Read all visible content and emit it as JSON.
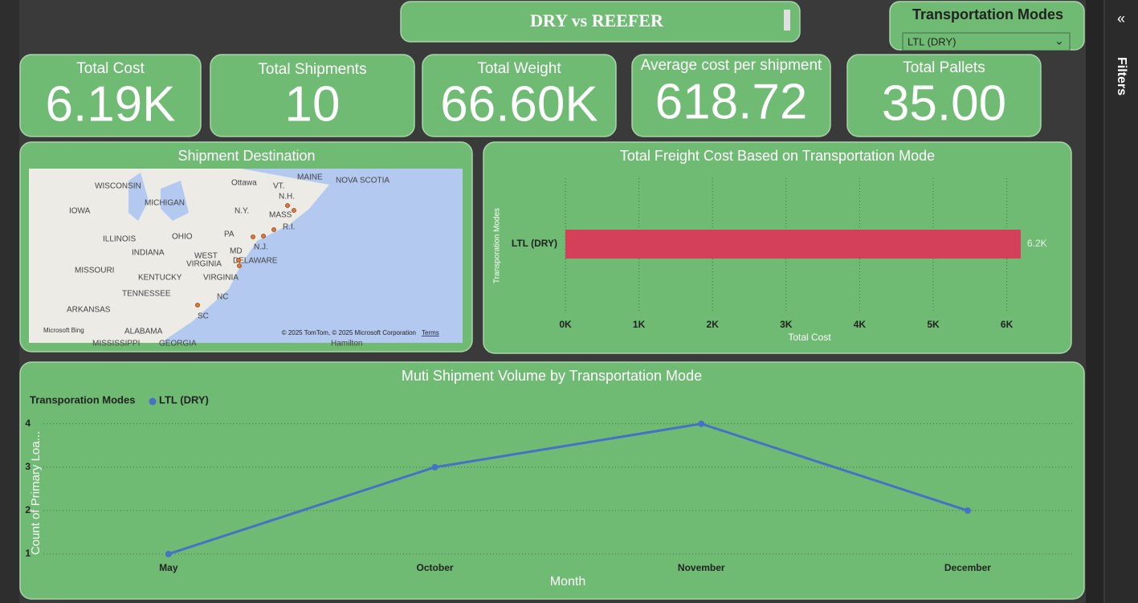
{
  "title": "DRY vs REEFER",
  "slicer": {
    "title": "Transportation Modes",
    "selected": "LTL (DRY)"
  },
  "filters_pane": {
    "label": "Filters"
  },
  "kpis": [
    {
      "label": "Total Cost",
      "value": "6.19K"
    },
    {
      "label": "Total Shipments",
      "value": "10"
    },
    {
      "label": "Total Weight",
      "value": "66.60K"
    },
    {
      "label": "Average cost per shipment",
      "value": "618.72"
    },
    {
      "label": "Total Pallets",
      "value": "35.00"
    }
  ],
  "map": {
    "title": "Shipment Destination",
    "labels": [
      "WISCONSIN",
      "MICHIGAN",
      "Ottawa",
      "MAINE",
      "NOVA SCOTIA",
      "VT.",
      "N.H.",
      "IOWA",
      "N.Y.",
      "MASS",
      "R.I.",
      "ILLINOIS",
      "OHIO",
      "PA",
      "INDIANA",
      "N.J.",
      "MD",
      "WEST",
      "VIRGINIA",
      "DELAWARE",
      "MISSOURI",
      "KENTUCKY",
      "VIRGINIA",
      "TENNESSEE",
      "NC",
      "ARKANSAS",
      "SC",
      "ALABAMA",
      "MISSISSIPPI",
      "GEORGIA",
      "Hamilton"
    ],
    "attribution": "© 2025 TomTom, © 2025 Microsoft Corporation",
    "terms": "Terms",
    "provider": "Microsoft Bing"
  },
  "chart_data": [
    {
      "type": "bar",
      "orientation": "horizontal",
      "title": "Total Freight Cost Based on Transportation Mode",
      "y_label": "Transporation Modes",
      "x_label": "Total Cost",
      "categories": [
        "LTL (DRY)"
      ],
      "values": [
        6190
      ],
      "value_labels": [
        "6.2K"
      ],
      "color": "#d4405a",
      "xlim": [
        0,
        6500
      ],
      "xticks": [
        {
          "value": 0,
          "label": "0K"
        },
        {
          "value": 1000,
          "label": "1K"
        },
        {
          "value": 2000,
          "label": "2K"
        },
        {
          "value": 3000,
          "label": "3K"
        },
        {
          "value": 4000,
          "label": "4K"
        },
        {
          "value": 5000,
          "label": "5K"
        },
        {
          "value": 6000,
          "label": "6K"
        }
      ],
      "grid": true
    },
    {
      "type": "line",
      "title": "Muti Shipment Volume by Transportation Mode",
      "legend_title": "Transporation Modes",
      "y_label": "Count of Primary Loa...",
      "x_label": "Month",
      "categories": [
        "May",
        "October",
        "November",
        "December"
      ],
      "series": [
        {
          "name": "LTL (DRY)",
          "color": "#4472c4",
          "values": [
            1,
            3,
            4,
            2
          ]
        }
      ],
      "ylim": [
        0.8,
        4.2
      ],
      "yticks": [
        1,
        2,
        3,
        4
      ],
      "grid": true
    }
  ]
}
